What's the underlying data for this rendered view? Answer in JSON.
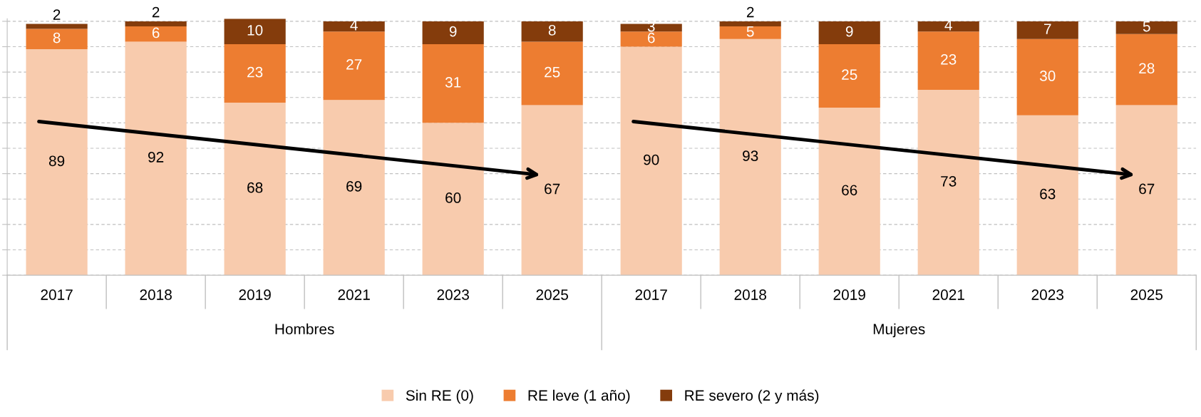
{
  "chart_data": {
    "type": "bar",
    "stacked": true,
    "categories": [
      "2017",
      "2018",
      "2019",
      "2021",
      "2023",
      "2025",
      "2017",
      "2018",
      "2019",
      "2021",
      "2023",
      "2025"
    ],
    "series": [
      {
        "name": "Sin RE (0)",
        "color": "#f8cbad",
        "values": [
          89,
          92,
          68,
          69,
          60,
          67,
          90,
          93,
          66,
          73,
          63,
          67
        ]
      },
      {
        "name": "RE leve (1 año)",
        "color": "#ed7d31",
        "values": [
          8,
          6,
          23,
          27,
          31,
          25,
          6,
          5,
          25,
          23,
          30,
          28
        ]
      },
      {
        "name": "RE severo (2 y más)",
        "color": "#843c0c",
        "values": [
          2,
          2,
          10,
          4,
          9,
          8,
          3,
          2,
          9,
          4,
          7,
          5
        ]
      }
    ],
    "ylim": [
      0,
      101
    ],
    "yticks": [
      {
        "value": 0,
        "label": null
      },
      {
        "value": 10,
        "label": null
      },
      {
        "value": 20,
        "label": null
      },
      {
        "value": 30,
        "label": null
      },
      {
        "value": 40,
        "label": null
      },
      {
        "value": 50,
        "label": null
      },
      {
        "value": 60,
        "label": null
      },
      {
        "value": 70,
        "label": null
      },
      {
        "value": 80,
        "label": null
      },
      {
        "value": 90,
        "label": null
      },
      {
        "value": 100,
        "label": null
      }
    ],
    "tick_labels": "x",
    "grid": "y",
    "data_labels": true,
    "legend": "bottom",
    "annotations": [
      "Hombres",
      "Mujeres"
    ]
  }
}
